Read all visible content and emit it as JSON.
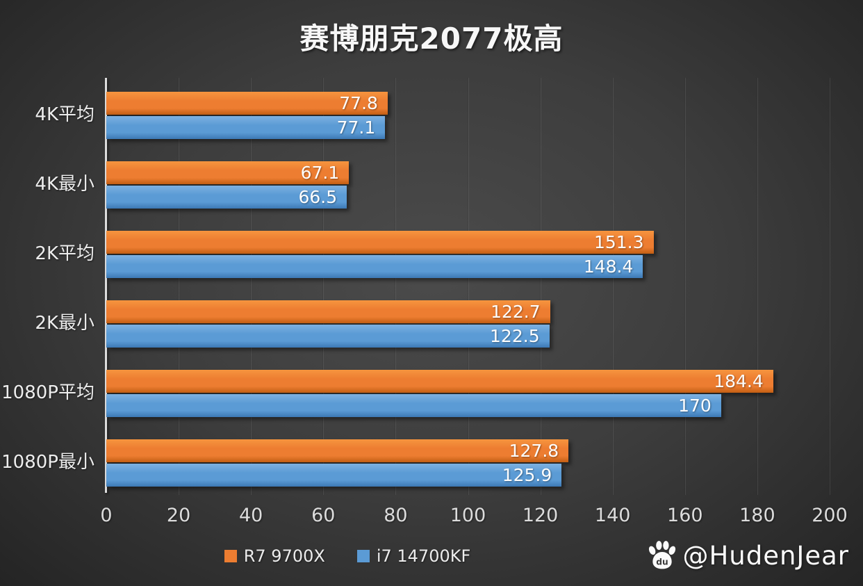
{
  "title": "赛博朋克2077极高",
  "chart_data": {
    "type": "bar",
    "orientation": "horizontal",
    "title": "赛博朋克2077极高",
    "categories": [
      "4K平均",
      "4K最小",
      "2K平均",
      "2K最小",
      "1080P平均",
      "1080P最小"
    ],
    "series": [
      {
        "name": "R7 9700X",
        "color": "#ED7D31",
        "color_light": "#F6953F",
        "color_dark": "#C25E13",
        "values": [
          77.8,
          67.1,
          151.3,
          122.7,
          184.4,
          127.8
        ]
      },
      {
        "name": "i7 14700KF",
        "color": "#5B9BD5",
        "color_light": "#7DB1E1",
        "color_dark": "#3C78B4",
        "values": [
          77.1,
          66.5,
          148.4,
          122.5,
          170,
          125.9
        ]
      }
    ],
    "xlim": [
      0,
      200
    ],
    "xticks": [
      0,
      20,
      40,
      60,
      80,
      100,
      120,
      140,
      160,
      180,
      200
    ],
    "grid": "vertical-gridlines-on",
    "legend_position": "bottom-center",
    "value_labels": "inside-end"
  },
  "legend": {
    "items": [
      {
        "label": "R7 9700X",
        "color": "#ED7D31"
      },
      {
        "label": "i7 14700KF",
        "color": "#5B9BD5"
      }
    ]
  },
  "watermark": {
    "icon": "baidu-paw-icon",
    "handle": "@HudenJear"
  },
  "style": {
    "background_center": "#4b4b4b",
    "background_edge": "#242424",
    "axis_line_color": "#dcdcdc",
    "text_color": "#ececec"
  }
}
